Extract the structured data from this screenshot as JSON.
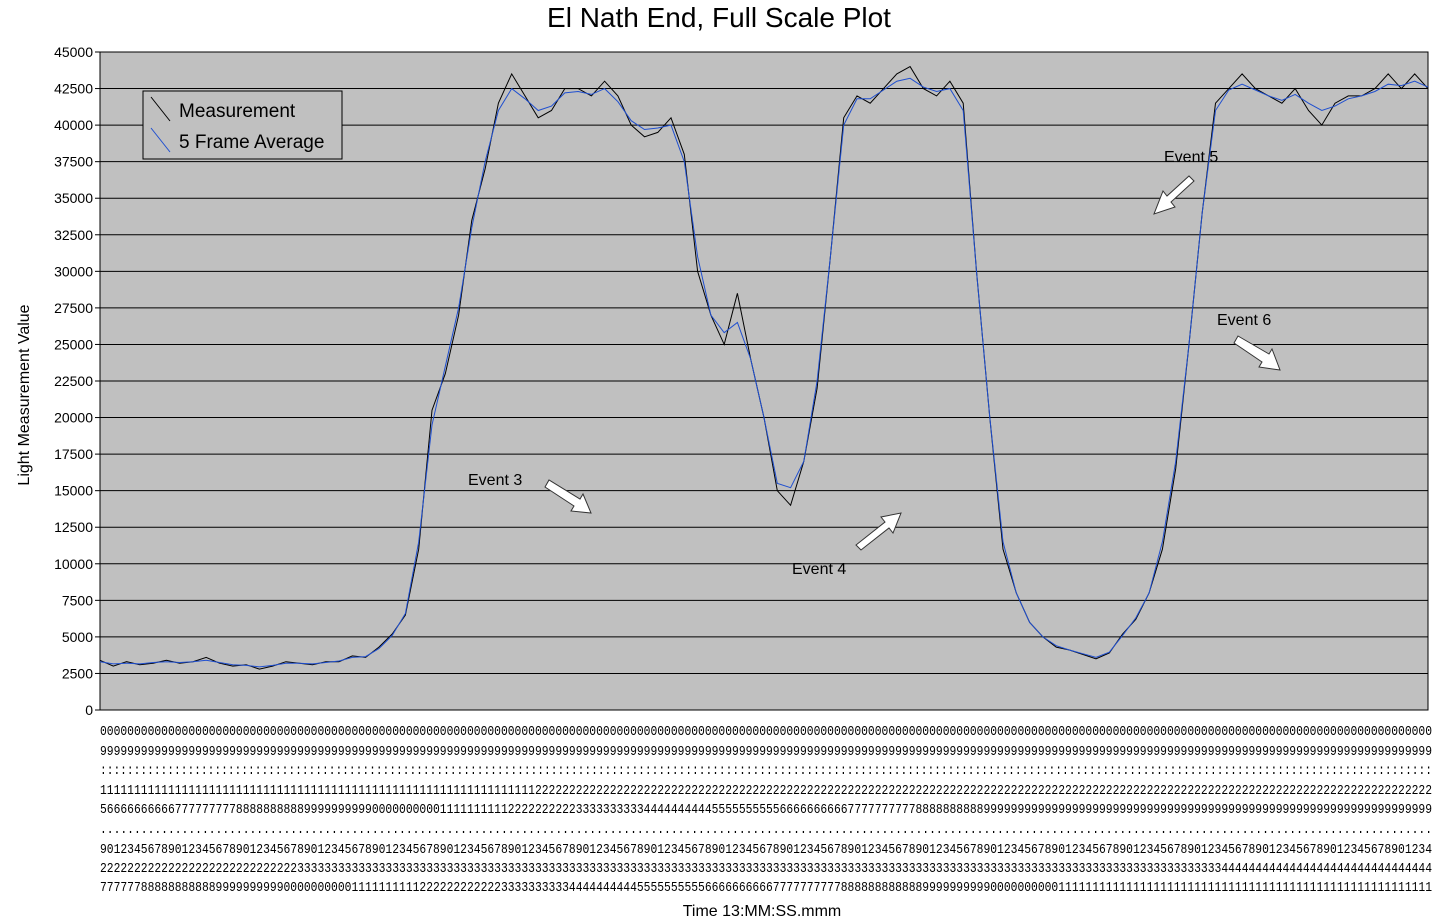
{
  "chart_data": {
    "type": "line",
    "title": "El Nath End, Full Scale Plot",
    "xlabel": "Time 13:MM:SS.mmm",
    "ylabel": "Light Measurement Value",
    "ylim": [
      0,
      45000
    ],
    "yticks": [
      0,
      2500,
      5000,
      7500,
      10000,
      12500,
      15000,
      17500,
      20000,
      22500,
      25000,
      27500,
      30000,
      32500,
      35000,
      37500,
      40000,
      42500,
      45000
    ],
    "grid": true,
    "plot_background": "#c0c0c0",
    "legend": {
      "position": "top-left",
      "entries": [
        "Measurement",
        "5 Frame Average"
      ]
    },
    "x_tick_rows": [
      "0000000000000000000000000000000000000000000000000000000000000000000000000000000000000000000000000000000000000000000000000000000000000000000000000000000000000000000000000000000000000000000000000000",
      "9999999999999999999999999999999999999999999999999999999999999999999999999999999999999999999999999999999999999999999999999999999999999999999999999999999999999999999999999999999999999999999999999999",
      "::::::::::::::::::::::::::::::::::::::::::::::::::::::::::::::::::::::::::::::::::::::::::::::::::::::::::::::::::::::::::::::::::::::::::::::::::::::::::::::::::::::::::::::::::::::::::::::::::::::",
      "1111111111111111111111111111111111111111111111111111111111111111222222222222222222222222222222222222222222222222222222222222222222222222222222222222222222222222222222222222222222222222222222222222",
      "5666666666677777777788888888889999999999000000000011111111112222222222333333333344444444445555555555666666666677777777778888888888999999999999999999999999999999999999999999999999999999999999999999",
      "....................................................................................................................................................................................................",
      "9012345678901234567890123456789012345678901234567890123456789012345678901234567890123456789012345678901234567890123456789012345678901234567890123456789012345678901234567890123456789012345678901234",
      "2222222222222222222222222222233333333333333333333333333333333333333333333333333333333333333333333333333333333333333333333333333333333333333333333333333333333333333334444444444444444444444444444444",
      "7777778888888888899999999990000000000111111111122222222222233333333334444444444555555555566666666667777777777888888888888999999999900000000001111111111111111111111111111111111111111111111111111111"
    ],
    "annotations": [
      {
        "text": "Event 3",
        "arrow": "down-right"
      },
      {
        "text": "Event 4",
        "arrow": "up-right"
      },
      {
        "text": "Event 5",
        "arrow": "down-left"
      },
      {
        "text": "Event 6",
        "arrow": "down-right"
      }
    ],
    "series": [
      {
        "name": "Measurement",
        "color": "#000000",
        "x": [
          0,
          4,
          8,
          12,
          16,
          20,
          24,
          28,
          32,
          36,
          40,
          44,
          48,
          52,
          56,
          60,
          64,
          68,
          72,
          76,
          80,
          84,
          88,
          92,
          96,
          100,
          104,
          108,
          112,
          116,
          120,
          124,
          128,
          132,
          136,
          140,
          144,
          148,
          152,
          156,
          160,
          164,
          168,
          172,
          176,
          180,
          184,
          188,
          192,
          196,
          200,
          204,
          208,
          212,
          216,
          220,
          224,
          228,
          232,
          236,
          240,
          244,
          248,
          252,
          256,
          260,
          264,
          268,
          272,
          276,
          280,
          284,
          288,
          292,
          296,
          300,
          304,
          308,
          312,
          316,
          320,
          324,
          328,
          332,
          336,
          340,
          344,
          348,
          352,
          356,
          360,
          364,
          368,
          372,
          376,
          380,
          384,
          388,
          392,
          396,
          400
        ],
        "values": [
          3400,
          3000,
          3300,
          3100,
          3200,
          3400,
          3200,
          3300,
          3600,
          3200,
          3000,
          3100,
          2800,
          3000,
          3300,
          3200,
          3100,
          3300,
          3300,
          3700,
          3600,
          4300,
          5200,
          6500,
          11000,
          20500,
          23000,
          27000,
          33500,
          37000,
          41500,
          43500,
          42000,
          40500,
          41000,
          42500,
          42500,
          42000,
          43000,
          42000,
          40000,
          39200,
          39500,
          40500,
          38000,
          30000,
          27000,
          25000,
          28500,
          24000,
          20000,
          15000,
          14000,
          17000,
          22000,
          31000,
          40500,
          42000,
          41500,
          42500,
          43500,
          44000,
          42500,
          42000,
          43000,
          41500,
          30000,
          20000,
          11000,
          8000,
          6000,
          5000,
          4300,
          4100,
          3800,
          3500,
          3900,
          5200,
          6200,
          8000,
          11000,
          16500,
          25000,
          34000,
          41500,
          42500,
          43500,
          42500,
          42000,
          41500,
          42500,
          41000,
          40000,
          41500,
          42000,
          42000,
          42500,
          43500,
          42500,
          43500,
          42500
        ]
      },
      {
        "name": "5 Frame Average",
        "color": "#1f4fd0",
        "x": [
          0,
          4,
          8,
          12,
          16,
          20,
          24,
          28,
          32,
          36,
          40,
          44,
          48,
          52,
          56,
          60,
          64,
          68,
          72,
          76,
          80,
          84,
          88,
          92,
          96,
          100,
          104,
          108,
          112,
          116,
          120,
          124,
          128,
          132,
          136,
          140,
          144,
          148,
          152,
          156,
          160,
          164,
          168,
          172,
          176,
          180,
          184,
          188,
          192,
          196,
          200,
          204,
          208,
          212,
          216,
          220,
          224,
          228,
          232,
          236,
          240,
          244,
          248,
          252,
          256,
          260,
          264,
          268,
          272,
          276,
          280,
          284,
          288,
          292,
          296,
          300,
          304,
          308,
          312,
          316,
          320,
          324,
          328,
          332,
          336,
          340,
          344,
          348,
          352,
          356,
          360,
          364,
          368,
          372,
          376,
          380,
          384,
          388,
          392,
          396,
          400
        ],
        "values": [
          3300,
          3150,
          3200,
          3150,
          3250,
          3300,
          3250,
          3300,
          3400,
          3250,
          3100,
          3050,
          2950,
          3050,
          3200,
          3200,
          3150,
          3250,
          3350,
          3600,
          3650,
          4200,
          5100,
          6600,
          11500,
          19500,
          23500,
          27500,
          33000,
          37500,
          41000,
          42500,
          41800,
          41000,
          41300,
          42200,
          42300,
          42100,
          42500,
          41600,
          40300,
          39700,
          39800,
          40000,
          37500,
          31000,
          27000,
          25800,
          26500,
          24000,
          20000,
          15500,
          15200,
          17000,
          22500,
          31000,
          40000,
          41800,
          41800,
          42400,
          43000,
          43200,
          42600,
          42300,
          42500,
          41000,
          30000,
          20000,
          11500,
          8000,
          6000,
          5000,
          4400,
          4100,
          3850,
          3600,
          3950,
          5100,
          6300,
          8000,
          11500,
          17000,
          25000,
          34000,
          41000,
          42400,
          42800,
          42400,
          42000,
          41700,
          42100,
          41500,
          41000,
          41300,
          41800,
          42000,
          42300,
          42800,
          42700,
          43000,
          42600
        ]
      }
    ]
  }
}
